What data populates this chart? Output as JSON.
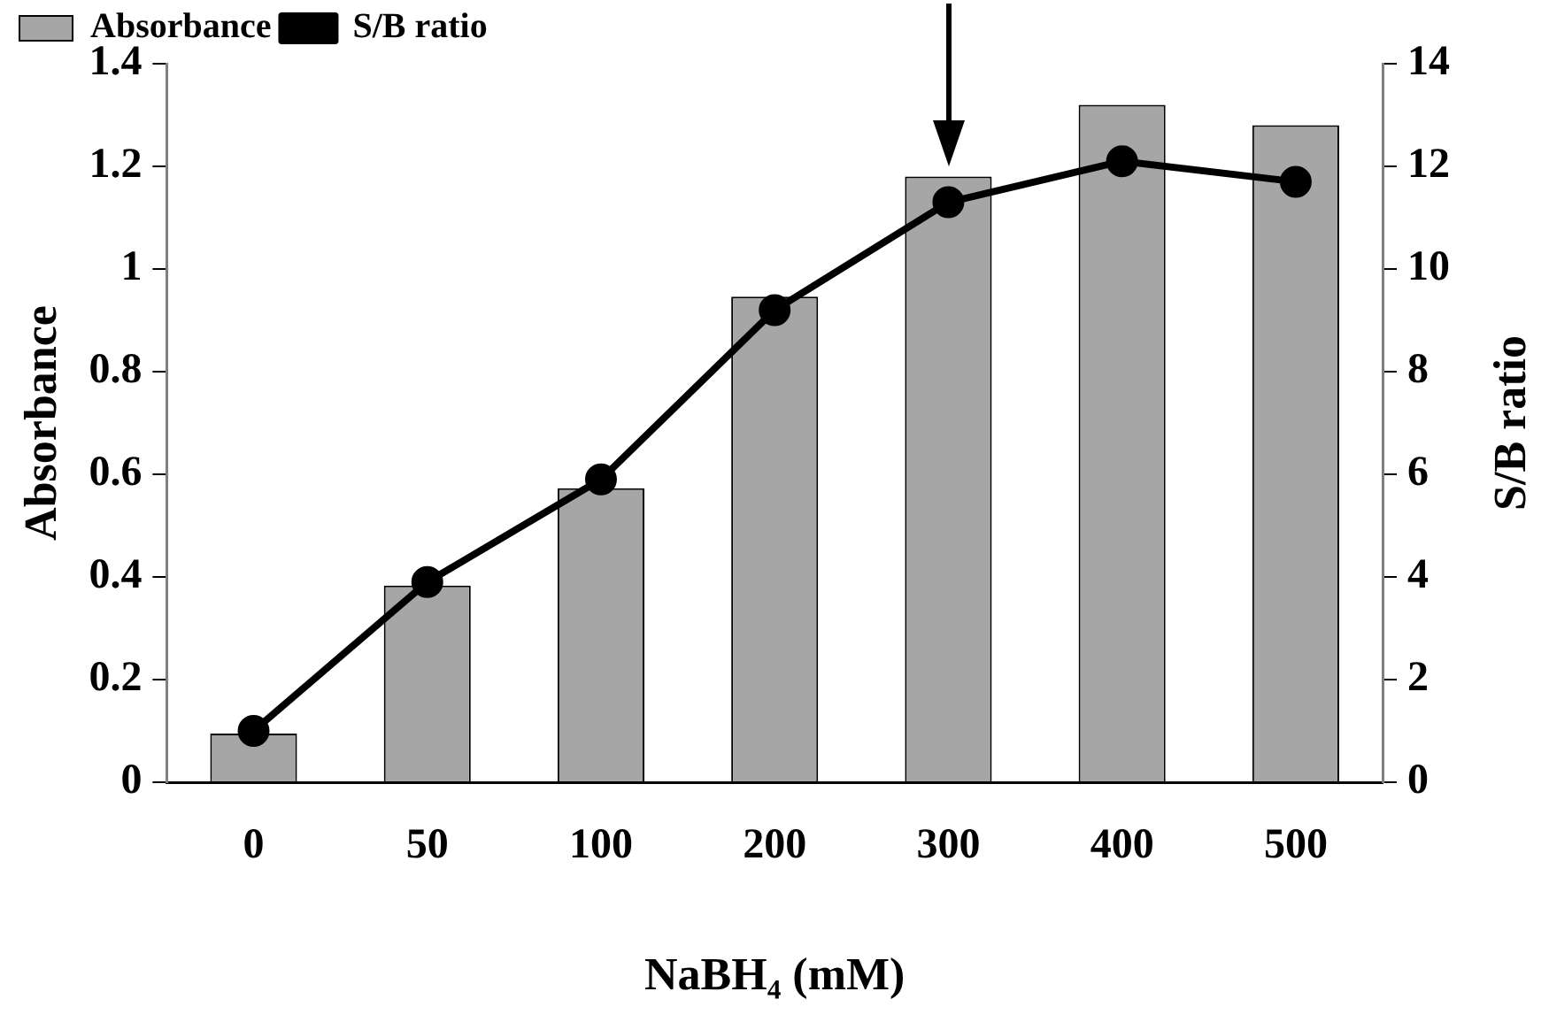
{
  "chart_data": {
    "type": "bar",
    "xlabel": "NaBH₄ (mM)",
    "ylabel": "Absorbance",
    "y2label": "S/B ratio",
    "categories": [
      "0",
      "50",
      "100",
      "200",
      "300",
      "400",
      "500"
    ],
    "series": [
      {
        "name": "Absorbance",
        "color": "#a6a6a6",
        "values": [
          0.095,
          0.383,
          0.573,
          0.946,
          1.18,
          1.32,
          1.28
        ]
      },
      {
        "name": "S/B ratio",
        "type": "line",
        "axis": "y2",
        "color": "#000000",
        "values": [
          1.0,
          3.9,
          5.9,
          9.2,
          11.3,
          12.1,
          11.7
        ]
      }
    ],
    "ylim": [
      0,
      1.4
    ],
    "yticks": [
      0,
      0.2,
      0.4,
      0.6,
      0.8,
      1,
      1.2,
      1.4
    ],
    "y2lim": [
      0,
      14
    ],
    "y2ticks": [
      0,
      2,
      4,
      6,
      8,
      10,
      12,
      14
    ],
    "grid": false,
    "legend": "top left",
    "marker": "circle",
    "line_style": "solid"
  }
}
